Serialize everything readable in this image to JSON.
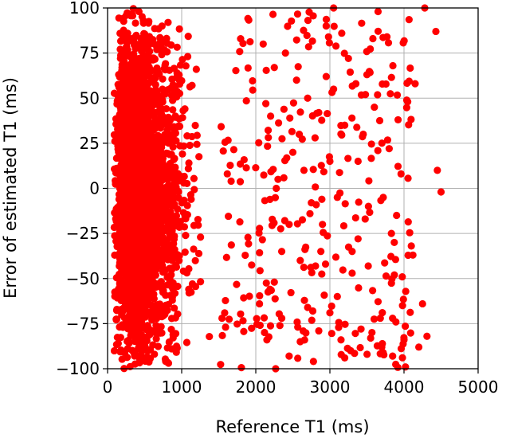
{
  "chart_data": {
    "type": "scatter",
    "title": "",
    "xlabel": "Reference T1 (ms)",
    "ylabel": "Error of estimated T1 (ms)",
    "xlim": [
      0,
      5000
    ],
    "ylim": [
      -100,
      100
    ],
    "xticks": [
      0,
      1000,
      2000,
      3000,
      4000,
      5000
    ],
    "xtick_labels": [
      "0",
      "1000",
      "2000",
      "3000",
      "4000",
      "5000"
    ],
    "yticks": [
      -100,
      -75,
      -50,
      -25,
      0,
      25,
      50,
      75,
      100
    ],
    "ytick_labels": [
      "−100",
      "−75",
      "−50",
      "−25",
      "0",
      "25",
      "50",
      "75",
      "100"
    ],
    "grid": true,
    "legend": "none",
    "marker_color": "#ff0000",
    "grid_color": "#b0b0b0",
    "series": [
      {
        "points": [
          {
            "x": 4500,
            "y": -2
          },
          {
            "x": 4450,
            "y": 10
          },
          {
            "x": 4430,
            "y": 87
          },
          {
            "x": 4280,
            "y": 100
          },
          {
            "x": 4310,
            "y": -82
          },
          {
            "x": 4250,
            "y": -64
          },
          {
            "x": 4200,
            "y": -88
          },
          {
            "x": 4020,
            "y": -99
          },
          {
            "x": 4000,
            "y": -84
          },
          {
            "x": 4120,
            "y": -37
          },
          {
            "x": 3960,
            "y": 8
          },
          {
            "x": 3900,
            "y": -15
          },
          {
            "x": 3850,
            "y": 68
          },
          {
            "x": 3770,
            "y": 84
          },
          {
            "x": 3650,
            "y": 98
          },
          {
            "x": 3580,
            "y": 83
          },
          {
            "x": 3500,
            "y": 63
          },
          {
            "x": 3350,
            "y": 58
          },
          {
            "x": 3250,
            "y": 72
          },
          {
            "x": 3160,
            "y": 86
          },
          {
            "x": 3050,
            "y": 100
          },
          {
            "x": 2950,
            "y": 90
          },
          {
            "x": 3100,
            "y": -60
          },
          {
            "x": 3200,
            "y": -94
          },
          {
            "x": 3300,
            "y": -47
          },
          {
            "x": 3380,
            "y": -28
          },
          {
            "x": 3450,
            "y": 30
          },
          {
            "x": 3520,
            "y": -10
          },
          {
            "x": 3600,
            "y": 45
          },
          {
            "x": 3680,
            "y": -72
          },
          {
            "x": 3720,
            "y": -5
          },
          {
            "x": 3800,
            "y": 22
          },
          {
            "x": 3870,
            "y": -48
          },
          {
            "x": 3920,
            "y": 38
          },
          {
            "x": 3700,
            "y": -88
          },
          {
            "x": 3550,
            "y": -83
          },
          {
            "x": 3420,
            "y": -78
          },
          {
            "x": 3280,
            "y": -90
          },
          {
            "x": 3150,
            "y": -84
          },
          {
            "x": 3000,
            "y": -69
          },
          {
            "x": 2850,
            "y": -79
          },
          {
            "x": 2700,
            "y": -66
          },
          {
            "x": 2600,
            "y": -85
          },
          {
            "x": 2450,
            "y": -93
          },
          {
            "x": 2350,
            "y": -72
          },
          {
            "x": 2250,
            "y": -52
          },
          {
            "x": 2150,
            "y": -84
          },
          {
            "x": 2050,
            "y": -64
          },
          {
            "x": 2100,
            "y": 80
          },
          {
            "x": 2250,
            "y": 67
          },
          {
            "x": 2400,
            "y": 75
          },
          {
            "x": 2550,
            "y": 60
          },
          {
            "x": 2700,
            "y": 50
          },
          {
            "x": 2850,
            "y": 42
          },
          {
            "x": 2950,
            "y": 62
          },
          {
            "x": 3050,
            "y": 55
          },
          {
            "x": 2500,
            "y": 20
          },
          {
            "x": 2650,
            "y": 10
          },
          {
            "x": 2800,
            "y": 28
          },
          {
            "x": 2900,
            "y": -20
          },
          {
            "x": 3000,
            "y": 15
          },
          {
            "x": 3100,
            "y": -5
          },
          {
            "x": 3200,
            "y": 35
          },
          {
            "x": 3300,
            "y": -35
          },
          {
            "x": 2450,
            "y": -20
          },
          {
            "x": 2600,
            "y": -40
          },
          {
            "x": 2750,
            "y": -8
          },
          {
            "x": 2300,
            "y": 5
          },
          {
            "x": 2200,
            "y": 40
          },
          {
            "x": 2350,
            "y": -35
          },
          {
            "x": 4050,
            "y": 48
          },
          {
            "x": 4150,
            "y": 58
          },
          {
            "x": 3980,
            "y": -65
          },
          {
            "x": 3830,
            "y": -25
          },
          {
            "x": 3480,
            "y": 52
          },
          {
            "x": 3380,
            "y": 15
          }
        ]
      }
    ]
  }
}
